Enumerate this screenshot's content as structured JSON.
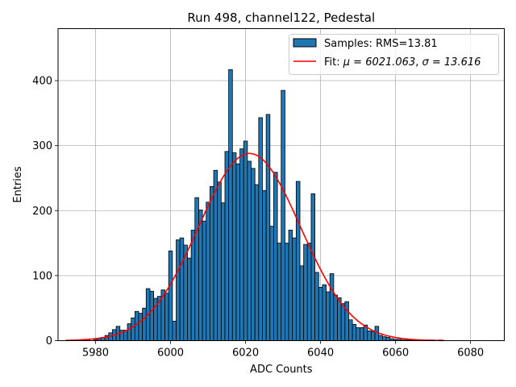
{
  "chart_data": {
    "type": "bar",
    "title": "Run 498, channel122, Pedestal",
    "xlabel": "ADC Counts",
    "ylabel": "Entries",
    "xlim": [
      5970,
      6089
    ],
    "ylim": [
      0,
      480
    ],
    "xticks": [
      5980,
      6000,
      6020,
      6040,
      6060,
      6080
    ],
    "yticks": [
      0,
      100,
      200,
      300,
      400
    ],
    "grid": true,
    "legend_position": "top-right",
    "histogram": {
      "name": "Samples: RMS=13.81",
      "color": "#1f77b4",
      "edge_color": "#000000",
      "bin_width": 1,
      "x": [
        5975,
        5977,
        5978,
        5980,
        5981,
        5982,
        5983,
        5984,
        5985,
        5986,
        5987,
        5988,
        5989,
        5990,
        5991,
        5992,
        5993,
        5994,
        5995,
        5996,
        5997,
        5998,
        5999,
        6000,
        6001,
        6002,
        6003,
        6004,
        6005,
        6006,
        6007,
        6008,
        6009,
        6010,
        6011,
        6012,
        6013,
        6014,
        6015,
        6016,
        6017,
        6018,
        6019,
        6020,
        6021,
        6022,
        6023,
        6024,
        6025,
        6026,
        6027,
        6028,
        6029,
        6030,
        6031,
        6032,
        6033,
        6034,
        6035,
        6036,
        6037,
        6038,
        6039,
        6040,
        6041,
        6042,
        6043,
        6044,
        6045,
        6046,
        6047,
        6048,
        6049,
        6050,
        6051,
        6052,
        6053,
        6054,
        6055,
        6056,
        6057,
        6058,
        6059,
        6060,
        6061,
        6062,
        6063,
        6064,
        6065,
        6066,
        6067,
        6068,
        6069,
        6070,
        6072
      ],
      "values": [
        1,
        2,
        2,
        2,
        3,
        5,
        8,
        12,
        17,
        22,
        16,
        16,
        26,
        35,
        45,
        42,
        50,
        80,
        76,
        65,
        68,
        78,
        73,
        138,
        30,
        155,
        158,
        147,
        127,
        170,
        220,
        201,
        184,
        213,
        237,
        262,
        244,
        212,
        291,
        417,
        289,
        272,
        295,
        307,
        276,
        265,
        240,
        343,
        231,
        348,
        176,
        259,
        150,
        385,
        150,
        170,
        158,
        245,
        115,
        148,
        150,
        226,
        105,
        82,
        86,
        75,
        103,
        70,
        66,
        57,
        60,
        32,
        25,
        20,
        20,
        24,
        15,
        14,
        22,
        8,
        6,
        5,
        3,
        2,
        2,
        1,
        1,
        1,
        1,
        1,
        1,
        1,
        1,
        1,
        1
      ]
    },
    "fit": {
      "name": "Fit: μ = 6021.063, σ = 13.616",
      "label_prefix": "Fit: ",
      "mu_label": "μ = 6021.063",
      "sigma_label": "σ = 13.616",
      "mu": 6021.063,
      "sigma": 13.616,
      "amplitude": 288,
      "x_range": [
        5972,
        6073
      ],
      "color": "#ff0000"
    }
  }
}
